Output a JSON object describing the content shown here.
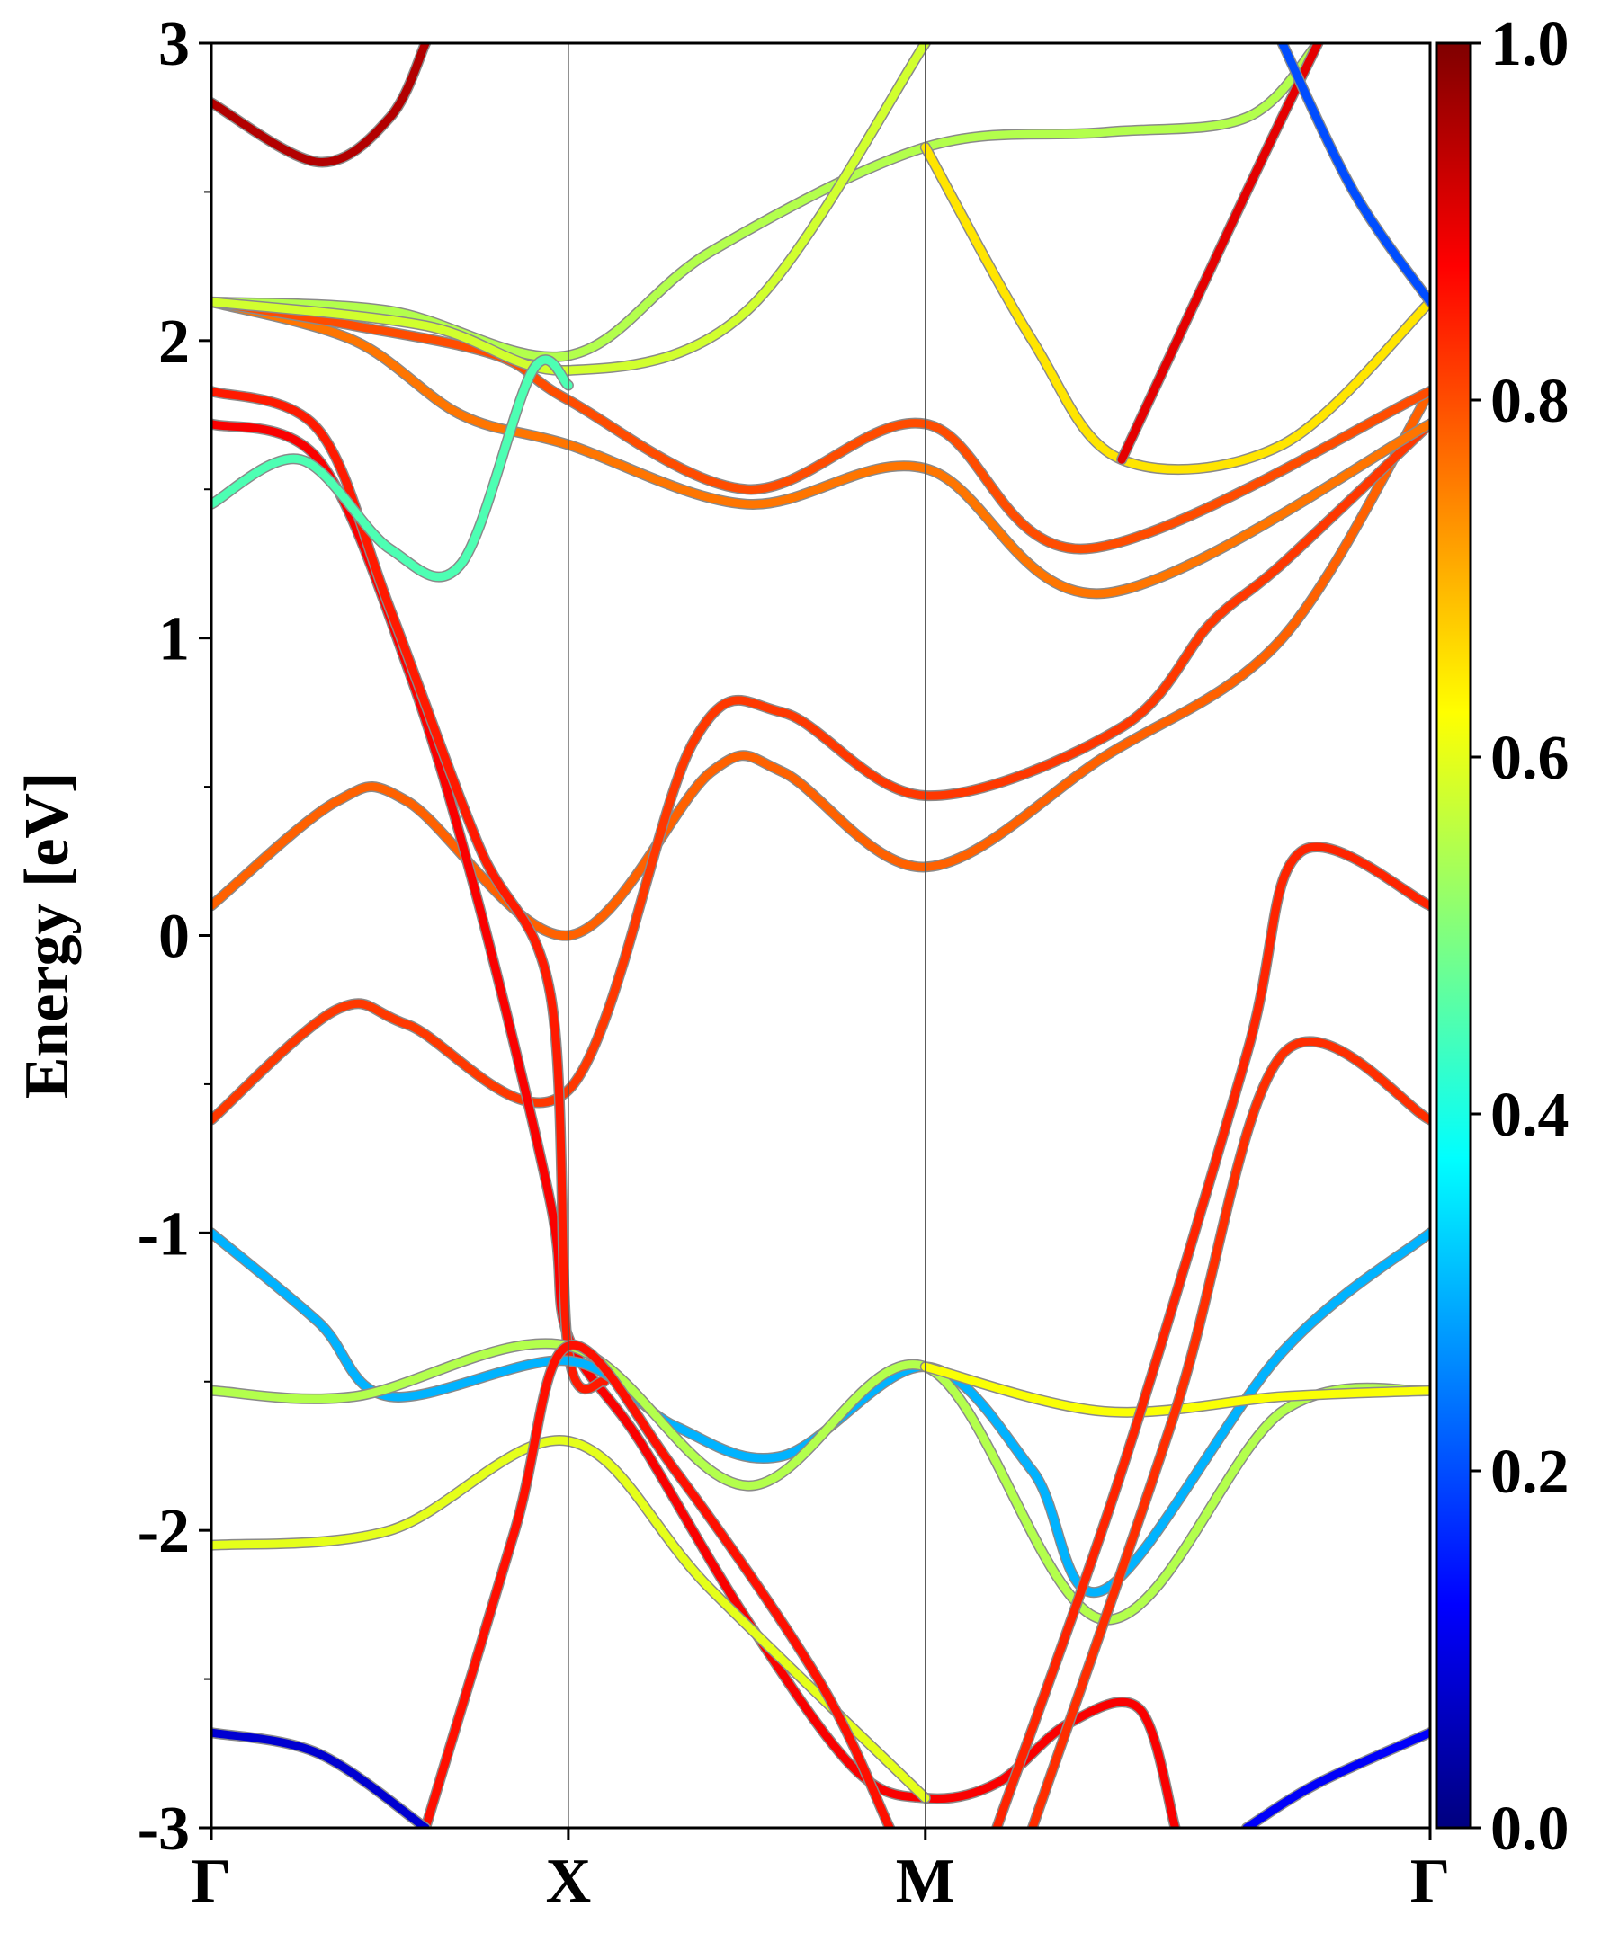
{
  "chart_data": {
    "type": "line",
    "title": "",
    "ylabel": "Energy [eV]",
    "xlabel": "",
    "ylim": [
      -3,
      3
    ],
    "x_range": [
      0,
      3.414
    ],
    "y_ticks": [
      {
        "value": -3,
        "label": "-3"
      },
      {
        "value": -2,
        "label": "-2"
      },
      {
        "value": -1,
        "label": "-1"
      },
      {
        "value": 0,
        "label": "0"
      },
      {
        "value": 1,
        "label": "1"
      },
      {
        "value": 2,
        "label": "2"
      },
      {
        "value": 3,
        "label": "3"
      }
    ],
    "y_minor_ticks": [
      -2.5,
      -1.5,
      -0.5,
      0.5,
      1.5,
      2.5
    ],
    "k_points": [
      {
        "label": "Γ",
        "x": 0
      },
      {
        "label": "X",
        "x": 1
      },
      {
        "label": "M",
        "x": 2
      },
      {
        "label": "Γ",
        "x": 3.414
      }
    ],
    "colorbar": {
      "colormap": "jet",
      "range": [
        0.0,
        1.0
      ],
      "ticks": [
        {
          "value": 0.0,
          "label": "0.0"
        },
        {
          "value": 0.2,
          "label": "0.2"
        },
        {
          "value": 0.4,
          "label": "0.4"
        },
        {
          "value": 0.6,
          "label": "0.6"
        },
        {
          "value": 0.8,
          "label": "0.8"
        },
        {
          "value": 1.0,
          "label": "1.0"
        }
      ]
    },
    "series": [
      {
        "weight": 0.78,
        "points": [
          [
            0,
            0.1
          ],
          [
            0.35,
            0.45
          ],
          [
            0.55,
            0.45
          ],
          [
            1,
            0
          ],
          [
            1.4,
            0.55
          ],
          [
            1.6,
            0.55
          ],
          [
            2,
            0.23
          ],
          [
            2.5,
            0.6
          ],
          [
            3.0,
            1.0
          ],
          [
            3.414,
            1.83
          ]
        ]
      },
      {
        "weight": 0.82,
        "points": [
          [
            0,
            -0.62
          ],
          [
            0.35,
            -0.25
          ],
          [
            0.55,
            -0.3
          ],
          [
            1,
            -0.52
          ],
          [
            1.35,
            0.65
          ],
          [
            1.6,
            0.75
          ],
          [
            2,
            0.47
          ],
          [
            2.55,
            0.7
          ],
          [
            2.8,
            1.05
          ],
          [
            3.0,
            1.25
          ],
          [
            3.414,
            1.72
          ]
        ]
      },
      {
        "weight": 0.88,
        "points": [
          [
            0,
            1.72
          ],
          [
            0.3,
            1.6
          ],
          [
            0.55,
            0.9
          ],
          [
            0.75,
            0.1
          ],
          [
            0.95,
            -0.9
          ],
          [
            1.0,
            -1.35
          ],
          [
            1.2,
            -1.7
          ],
          [
            1.5,
            -2.3
          ],
          [
            1.8,
            -2.8
          ],
          [
            2,
            -2.9
          ],
          [
            2.2,
            -2.85
          ],
          [
            2.4,
            -2.65
          ],
          [
            2.6,
            -2.6
          ],
          [
            2.7,
            -3.0
          ]
        ]
      },
      {
        "weight": 0.85,
        "points": [
          [
            0,
            1.83
          ],
          [
            0.3,
            1.7
          ],
          [
            0.5,
            1.1
          ],
          [
            0.75,
            0.3
          ],
          [
            0.95,
            -0.2
          ],
          [
            1.0,
            -1.4
          ],
          [
            1.1,
            -1.5
          ]
        ]
      },
      {
        "weight": 0.76,
        "points": [
          [
            0,
            2.13
          ],
          [
            0.4,
            2.0
          ],
          [
            0.7,
            1.75
          ],
          [
            1,
            1.65
          ],
          [
            1.5,
            1.45
          ],
          [
            2,
            1.57
          ],
          [
            2.5,
            1.15
          ],
          [
            3.414,
            1.72
          ]
        ]
      },
      {
        "weight": 0.8,
        "points": [
          [
            0,
            2.13
          ],
          [
            0.4,
            2.05
          ],
          [
            0.8,
            1.95
          ],
          [
            1,
            1.8
          ],
          [
            1.5,
            1.5
          ],
          [
            2,
            1.72
          ],
          [
            2.45,
            1.3
          ],
          [
            3.414,
            1.83
          ]
        ]
      },
      {
        "weight": 0.55,
        "points": [
          [
            0,
            2.13
          ],
          [
            0.5,
            2.1
          ],
          [
            1,
            1.95
          ],
          [
            1.4,
            2.3
          ],
          [
            2,
            2.65
          ],
          [
            2.5,
            2.7
          ],
          [
            2.9,
            2.75
          ],
          [
            3.1,
            3.0
          ]
        ]
      },
      {
        "weight": 0.58,
        "points": [
          [
            0,
            2.13
          ],
          [
            0.6,
            2.05
          ],
          [
            1,
            1.9
          ],
          [
            1.5,
            2.1
          ],
          [
            2,
            3.0
          ]
        ]
      },
      {
        "weight": 0.65,
        "points": [
          [
            2,
            2.65
          ],
          [
            2.3,
            2.0
          ],
          [
            2.55,
            1.6
          ],
          [
            3.0,
            1.65
          ],
          [
            3.414,
            2.13
          ]
        ]
      },
      {
        "weight": 0.45,
        "points": [
          [
            0,
            1.45
          ],
          [
            0.25,
            1.6
          ],
          [
            0.5,
            1.3
          ],
          [
            0.7,
            1.25
          ],
          [
            0.9,
            1.9
          ],
          [
            1.0,
            1.85
          ]
        ]
      },
      {
        "weight": 0.3,
        "points": [
          [
            0,
            -1.0
          ],
          [
            0.3,
            -1.3
          ],
          [
            0.5,
            -1.55
          ],
          [
            1,
            -1.43
          ],
          [
            1.3,
            -1.65
          ],
          [
            1.6,
            -1.75
          ],
          [
            2,
            -1.45
          ],
          [
            2.3,
            -1.8
          ],
          [
            2.5,
            -2.2
          ],
          [
            3.0,
            -1.4
          ],
          [
            3.414,
            -1.0
          ]
        ]
      },
      {
        "weight": 0.55,
        "points": [
          [
            0,
            -1.53
          ],
          [
            0.4,
            -1.55
          ],
          [
            1,
            -1.38
          ],
          [
            1.5,
            -1.85
          ],
          [
            2,
            -1.45
          ],
          [
            2.5,
            -2.3
          ],
          [
            3.0,
            -1.6
          ],
          [
            3.414,
            -1.53
          ]
        ]
      },
      {
        "weight": 0.6,
        "points": [
          [
            0,
            -2.05
          ],
          [
            0.5,
            -2.0
          ],
          [
            1,
            -1.7
          ],
          [
            1.4,
            -2.2
          ],
          [
            2,
            -2.9
          ]
        ]
      },
      {
        "weight": 0.62,
        "points": [
          [
            2,
            -1.45
          ],
          [
            2.5,
            -1.6
          ],
          [
            3.0,
            -1.55
          ],
          [
            3.414,
            -1.53
          ]
        ]
      },
      {
        "weight": 0.86,
        "points": [
          [
            0.6,
            -3.0
          ],
          [
            0.85,
            -2.0
          ],
          [
            1,
            -1.38
          ],
          [
            1.3,
            -1.8
          ],
          [
            1.7,
            -2.5
          ],
          [
            1.9,
            -3.0
          ]
        ]
      },
      {
        "weight": 0.84,
        "points": [
          [
            2.2,
            -3.0
          ],
          [
            2.55,
            -1.8
          ],
          [
            2.9,
            -0.4
          ],
          [
            3.05,
            0.28
          ],
          [
            3.414,
            0.1
          ]
        ]
      },
      {
        "weight": 0.83,
        "points": [
          [
            2.3,
            -3.0
          ],
          [
            2.7,
            -1.6
          ],
          [
            3.0,
            -0.4
          ],
          [
            3.414,
            -0.62
          ]
        ]
      },
      {
        "weight": 0.9,
        "points": [
          [
            2.55,
            1.6
          ],
          [
            2.9,
            2.5
          ],
          [
            3.1,
            3.0
          ]
        ]
      },
      {
        "weight": 0.2,
        "points": [
          [
            3.0,
            3.0
          ],
          [
            3.2,
            2.5
          ],
          [
            3.414,
            2.13
          ]
        ]
      },
      {
        "weight": 0.08,
        "points": [
          [
            0,
            -2.68
          ],
          [
            0.3,
            -2.75
          ],
          [
            0.6,
            -3.0
          ]
        ]
      },
      {
        "weight": 0.12,
        "points": [
          [
            3.414,
            -2.68
          ],
          [
            3.1,
            -2.85
          ],
          [
            2.9,
            -3.0
          ]
        ]
      },
      {
        "weight": 0.95,
        "points": [
          [
            0,
            2.8
          ],
          [
            0.3,
            2.6
          ],
          [
            0.5,
            2.75
          ],
          [
            0.6,
            3.0
          ]
        ]
      }
    ]
  }
}
